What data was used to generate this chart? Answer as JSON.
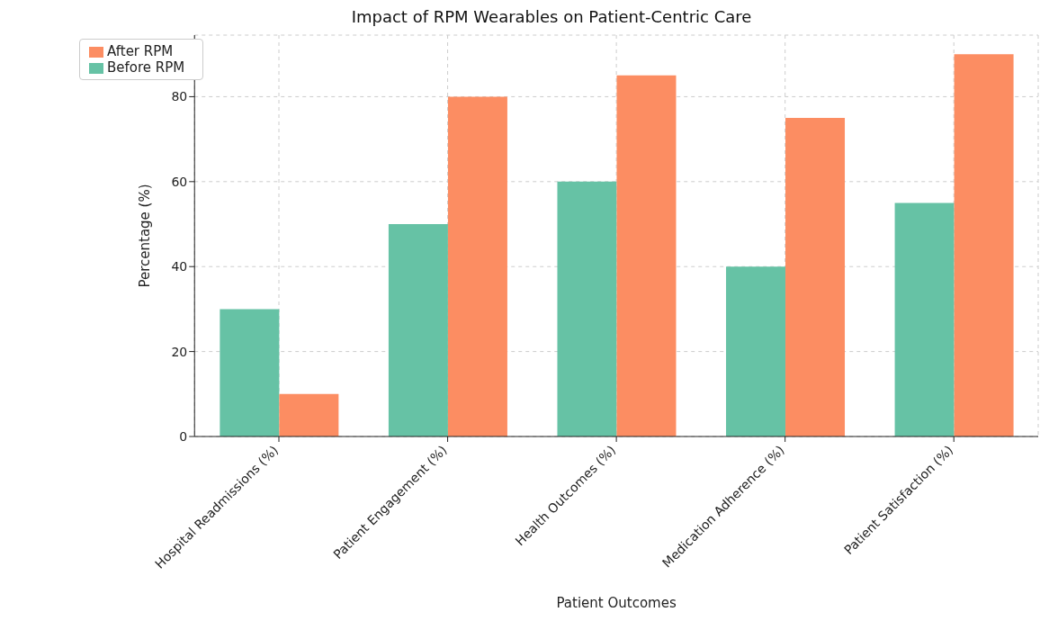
{
  "chart_data": {
    "type": "bar",
    "title": "Impact of RPM Wearables on Patient-Centric Care",
    "xlabel": "Patient Outcomes",
    "ylabel": "Percentage (%)",
    "categories": [
      "Hospital Readmissions (%)",
      "Patient Engagement (%)",
      "Health Outcomes (%)",
      "Medication Adherence (%)",
      "Patient Satisfaction (%)"
    ],
    "series": [
      {
        "name": "Before RPM",
        "color": "#66c2a5",
        "values": [
          30,
          50,
          60,
          40,
          55
        ]
      },
      {
        "name": "After RPM",
        "color": "#fc8d62",
        "values": [
          10,
          80,
          85,
          75,
          90
        ]
      }
    ],
    "ylim": [
      0,
      94.5
    ],
    "yticks": [
      0,
      20,
      40,
      60,
      80
    ],
    "grid": true,
    "legend": "top left"
  }
}
